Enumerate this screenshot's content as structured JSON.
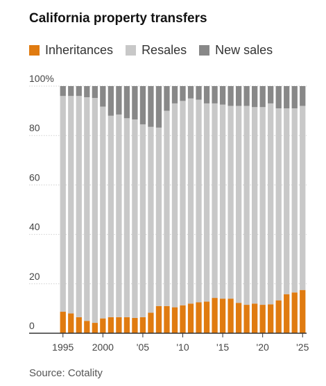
{
  "title": "California property transfers",
  "source": "Source: Cotality",
  "chart_data": {
    "type": "bar",
    "stacked": true,
    "x": [
      1995,
      1996,
      1997,
      1998,
      1999,
      2000,
      2001,
      2002,
      2003,
      2004,
      2005,
      2006,
      2007,
      2008,
      2009,
      2010,
      2011,
      2012,
      2013,
      2014,
      2015,
      2016,
      2017,
      2018,
      2019,
      2020,
      2021,
      2022,
      2023,
      2024,
      2025
    ],
    "series": [
      {
        "name": "Inheritances",
        "color": "#e07b10",
        "values": [
          8.7,
          8.0,
          6.5,
          5.0,
          4.2,
          6.0,
          6.5,
          6.5,
          6.5,
          6.2,
          6.5,
          8.3,
          11.0,
          11.0,
          10.5,
          11.3,
          12.0,
          12.5,
          12.8,
          14.3,
          14.0,
          14.0,
          12.3,
          11.5,
          12.0,
          11.5,
          11.7,
          13.3,
          15.8,
          16.5,
          17.5
        ]
      },
      {
        "name": "Resales",
        "color": "#c8c8c8",
        "values": [
          87.3,
          88.0,
          89.5,
          90.5,
          91.0,
          85.7,
          81.5,
          82.0,
          80.5,
          80.3,
          78.0,
          75.2,
          72.2,
          79.0,
          82.5,
          82.7,
          83.0,
          82.0,
          80.2,
          78.7,
          78.5,
          78.0,
          79.7,
          80.5,
          79.5,
          80.0,
          81.3,
          77.7,
          75.2,
          74.5,
          74.5
        ]
      },
      {
        "name": "New sales",
        "color": "#888888",
        "values": [
          4.0,
          4.0,
          4.0,
          4.5,
          4.8,
          8.3,
          12.0,
          11.5,
          13.0,
          13.5,
          15.5,
          16.5,
          16.8,
          10.0,
          7.0,
          6.0,
          5.0,
          5.5,
          7.0,
          7.0,
          7.5,
          8.0,
          8.0,
          8.0,
          8.5,
          8.5,
          7.0,
          9.0,
          9.0,
          9.0,
          8.0
        ]
      }
    ],
    "ylim": [
      0,
      100
    ],
    "y_ticks": [
      0,
      20,
      40,
      60,
      80,
      100
    ],
    "y_tick_labels": [
      "0",
      "20",
      "40",
      "60",
      "80",
      "100%"
    ],
    "x_ticks": [
      1995,
      2000,
      2005,
      2010,
      2015,
      2020,
      2025
    ],
    "x_tick_labels": [
      "1995",
      "2000",
      "'05",
      "'10",
      "'15",
      "'20",
      "'25"
    ],
    "grid": true,
    "legend_position": "top-left"
  }
}
